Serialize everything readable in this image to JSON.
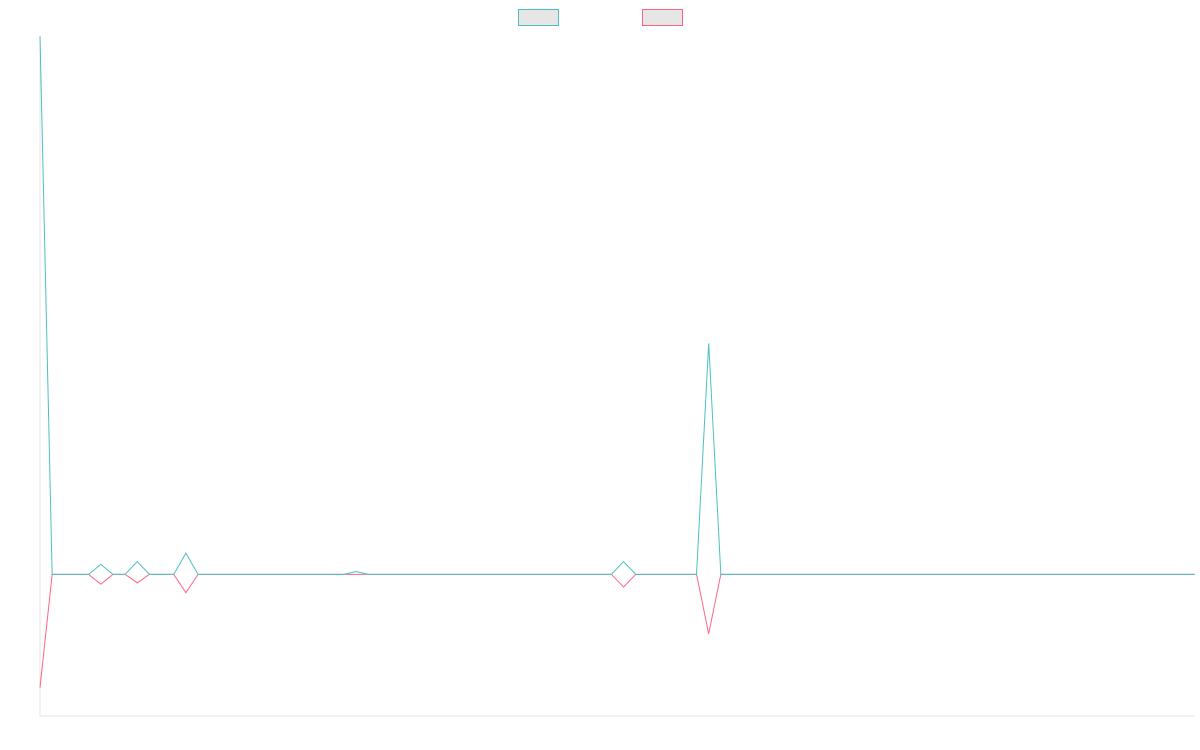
{
  "chart_data": {
    "type": "line",
    "title": "",
    "xlabel": "",
    "ylabel": "",
    "x_count": 96,
    "ylim": [
      -100,
      380
    ],
    "grid": false,
    "legend_position": "top-center",
    "series": [
      {
        "color": "#4bc0c0",
        "values": [
          380,
          0,
          0,
          0,
          0,
          7,
          0,
          0,
          9,
          0,
          0,
          0,
          15,
          0,
          0,
          0,
          0,
          0,
          0,
          0,
          0,
          0,
          0,
          0,
          0,
          0,
          2,
          0,
          0,
          0,
          0,
          0,
          0,
          0,
          0,
          0,
          0,
          0,
          0,
          0,
          0,
          0,
          0,
          0,
          0,
          0,
          0,
          0,
          9,
          0,
          0,
          0,
          0,
          0,
          0,
          163,
          0,
          0,
          0,
          0,
          0,
          0,
          0,
          0,
          0,
          0,
          0,
          0,
          0,
          0,
          0,
          0,
          0,
          0,
          0,
          0,
          0,
          0,
          0,
          0,
          0,
          0,
          0,
          0,
          0,
          0,
          0,
          0,
          0,
          0,
          0,
          0,
          0,
          0,
          0,
          0
        ]
      },
      {
        "color": "#ff6384",
        "values": [
          -80,
          0,
          0,
          0,
          0,
          -7,
          0,
          0,
          -6,
          0,
          0,
          0,
          -13,
          0,
          0,
          0,
          0,
          0,
          0,
          0,
          0,
          0,
          0,
          0,
          0,
          0,
          0,
          0,
          0,
          0,
          0,
          0,
          0,
          0,
          0,
          0,
          0,
          0,
          0,
          0,
          0,
          0,
          0,
          0,
          0,
          0,
          0,
          0,
          -9,
          0,
          0,
          0,
          0,
          0,
          0,
          -42,
          0,
          0,
          0,
          0,
          0,
          0,
          0,
          0,
          0,
          0,
          0,
          0,
          0,
          0,
          0,
          0,
          0,
          0,
          0,
          0,
          0,
          0,
          0,
          0,
          0,
          0,
          0,
          0,
          0,
          0,
          0,
          0,
          0,
          0,
          0,
          0,
          0,
          0,
          0,
          0
        ]
      }
    ]
  }
}
